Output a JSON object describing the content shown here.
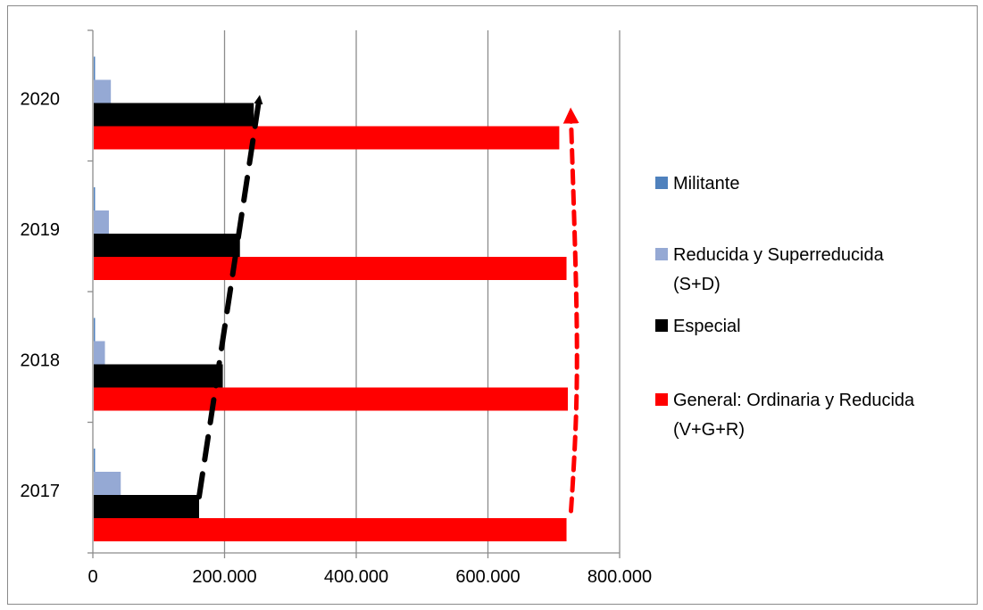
{
  "chart_data": {
    "type": "bar",
    "orientation": "horizontal",
    "title": "",
    "xlabel": "",
    "ylabel": "",
    "categories": [
      "2017",
      "2018",
      "2019",
      "2020"
    ],
    "series": [
      {
        "name": "Militante",
        "color": "#4f81bd",
        "values": [
          2000,
          2000,
          2000,
          2000
        ]
      },
      {
        "name": "Reducida y Superreducida (S+D)",
        "color": "#95a9d4",
        "values": [
          41000,
          17000,
          23000,
          26000
        ]
      },
      {
        "name": "Especial",
        "color": "#000000",
        "values": [
          160000,
          196000,
          222000,
          243000
        ]
      },
      {
        "name": "General: Ordinaria y Reducida (V+G+R)",
        "color": "#ff0000",
        "values": [
          718000,
          720000,
          718000,
          707000
        ]
      }
    ],
    "xlim": [
      0,
      800000
    ],
    "xticks": [
      0,
      200000,
      400000,
      600000,
      800000
    ],
    "xtick_labels": [
      "0",
      "200.000",
      "400.000",
      "600.000",
      "800.000"
    ],
    "grid": "vertical",
    "legend_position": "right",
    "legend": [
      {
        "lines": [
          "Militante"
        ],
        "color": "#4f81bd"
      },
      {
        "lines": [
          "Reducida y Superreducida",
          "(S+D)"
        ],
        "color": "#95a9d4"
      },
      {
        "lines": [
          "Especial"
        ],
        "color": "#000000"
      },
      {
        "lines": [
          "General: Ordinaria y Reducida",
          "(V+G+R)"
        ],
        "color": "#ff0000"
      }
    ],
    "annotations": [
      {
        "kind": "dashed-trend-arrow",
        "color": "#000000",
        "values": [
          160000,
          243000
        ]
      },
      {
        "kind": "dashed-trend-arrow",
        "color": "#ff0000",
        "values": [
          718000,
          707000
        ]
      }
    ]
  }
}
